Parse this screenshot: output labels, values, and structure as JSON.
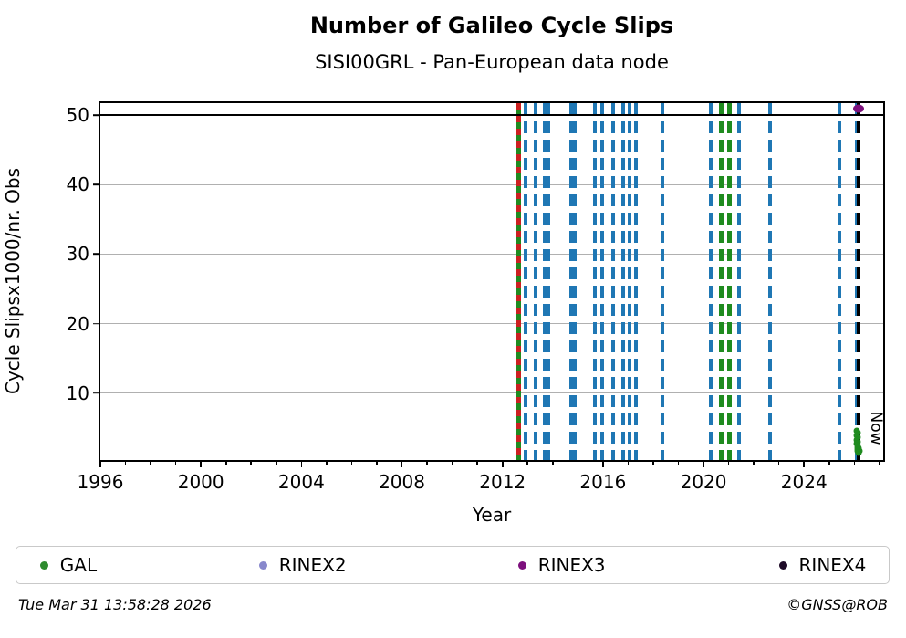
{
  "footer": {
    "timestamp": "Tue Mar 31 13:58:28 2026",
    "copyright": "©GNSS@ROB"
  },
  "chart_data": {
    "type": "scatter",
    "title": "Number of Galileo Cycle Slips",
    "subtitle": "SISI00GRL - Pan-European data node",
    "xlabel": "Year",
    "ylabel": "Cycle Slipsx1000/nr. Obs",
    "xlim": [
      1996,
      2027.15
    ],
    "ylim": [
      0.4,
      51.7
    ],
    "x_ticks": [
      1996,
      2000,
      2004,
      2008,
      2012,
      2016,
      2020,
      2024
    ],
    "x_minor_tick_step": 1,
    "y_ticks": [
      10,
      20,
      30,
      40,
      50
    ],
    "gridlines_y": [
      10,
      20,
      30,
      40
    ],
    "max_line_y": 50,
    "grid": "on",
    "legend_position": "bottom",
    "colors": {
      "blue": "#1f77b4",
      "green": "#1f8b1f",
      "red": "#cc2020",
      "black": "#000000",
      "purple": "#7d107d",
      "grid": "#b0b0b0"
    },
    "vertical_lines": [
      {
        "year": 2012.66,
        "color": "green",
        "width": 5,
        "overlay": "red"
      },
      {
        "year": 2012.91,
        "color": "blue",
        "width": 4
      },
      {
        "year": 2013.31,
        "color": "blue",
        "width": 4
      },
      {
        "year": 2013.77,
        "color": "blue",
        "width": 8
      },
      {
        "year": 2014.79,
        "color": "blue",
        "width": 8
      },
      {
        "year": 2015.69,
        "color": "blue",
        "width": 4
      },
      {
        "year": 2015.98,
        "color": "blue",
        "width": 4
      },
      {
        "year": 2016.41,
        "color": "blue",
        "width": 4
      },
      {
        "year": 2016.81,
        "color": "blue",
        "width": 4
      },
      {
        "year": 2017.06,
        "color": "blue",
        "width": 4
      },
      {
        "year": 2017.32,
        "color": "blue",
        "width": 4
      },
      {
        "year": 2018.36,
        "color": "blue",
        "width": 4
      },
      {
        "year": 2020.28,
        "color": "blue",
        "width": 4
      },
      {
        "year": 2020.71,
        "color": "green",
        "width": 5
      },
      {
        "year": 2021.04,
        "color": "green",
        "width": 5
      },
      {
        "year": 2021.43,
        "color": "blue",
        "width": 4
      },
      {
        "year": 2022.63,
        "color": "blue",
        "width": 4
      },
      {
        "year": 2025.41,
        "color": "blue",
        "width": 4
      },
      {
        "year": 2026.1,
        "color": "blue",
        "width": 4
      },
      {
        "year": 2026.17,
        "color": "black",
        "width": 4,
        "role": "now"
      }
    ],
    "now_marker": {
      "year": 2026.17,
      "label": "Now"
    },
    "series": [
      {
        "name": "GAL",
        "color": "#1f8b1f",
        "marker_w": 7,
        "marker_h": 7,
        "points": [
          [
            2026.08,
            4.55
          ],
          [
            2026.12,
            4.3
          ],
          [
            2026.1,
            4.0
          ],
          [
            2026.15,
            3.65
          ],
          [
            2026.11,
            3.35
          ],
          [
            2026.14,
            3.05
          ],
          [
            2026.1,
            2.75
          ],
          [
            2026.13,
            2.5
          ],
          [
            2026.12,
            2.2
          ],
          [
            2026.15,
            1.95
          ],
          [
            2026.13,
            1.7
          ],
          [
            2026.17,
            1.5
          ],
          [
            2026.2,
            1.75
          ],
          [
            2026.18,
            2.1
          ]
        ]
      },
      {
        "name": "RINEX2",
        "color": "#8888cc",
        "marker_w": 8,
        "marker_h": 8,
        "points": []
      },
      {
        "name": "RINEX3",
        "color": "#7d107d",
        "marker_w": 12,
        "marker_h": 9,
        "points": [
          [
            2026.17,
            50.9
          ]
        ]
      },
      {
        "name": "RINEX4",
        "color": "#1e0b28",
        "marker_w": 8,
        "marker_h": 8,
        "points": []
      }
    ],
    "legend": [
      {
        "label": "GAL",
        "color": "#2e8b2e"
      },
      {
        "label": "RINEX2",
        "color": "#8888cc"
      },
      {
        "label": "RINEX3",
        "color": "#7d107d"
      },
      {
        "label": "RINEX4",
        "color": "#1e0b28"
      }
    ]
  }
}
